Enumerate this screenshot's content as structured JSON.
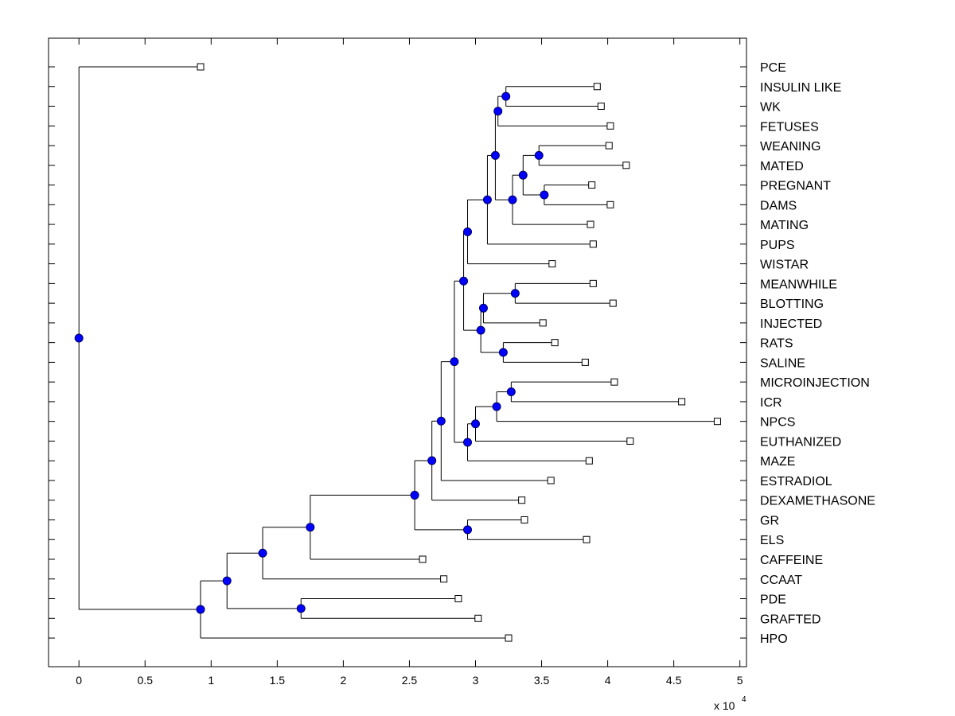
{
  "chart_data": {
    "type": "dendrogram",
    "title": "",
    "xlabel": "",
    "ylabel": "",
    "x_multiplier_label": "x 10",
    "x_multiplier_exponent": "4",
    "xlim": [
      -0.23,
      5.05
    ],
    "xticks": [
      0,
      0.5,
      1,
      1.5,
      2,
      2.5,
      3,
      3.5,
      4,
      4.5,
      5
    ],
    "xtick_labels": [
      "0",
      "0.5",
      "1",
      "1.5",
      "2",
      "2.5",
      "3",
      "3.5",
      "4",
      "4.5",
      "5"
    ],
    "leaves": [
      {
        "label": "PCE",
        "x": 0.92
      },
      {
        "label": "INSULIN LIKE",
        "x": 3.92
      },
      {
        "label": "WK",
        "x": 3.95
      },
      {
        "label": "FETUSES",
        "x": 4.02
      },
      {
        "label": "WEANING",
        "x": 4.01
      },
      {
        "label": "MATED",
        "x": 4.14
      },
      {
        "label": "PREGNANT",
        "x": 3.88
      },
      {
        "label": "DAMS",
        "x": 4.02
      },
      {
        "label": "MATING",
        "x": 3.87
      },
      {
        "label": "PUPS",
        "x": 3.89
      },
      {
        "label": "WISTAR",
        "x": 3.58
      },
      {
        "label": "MEANWHILE",
        "x": 3.89
      },
      {
        "label": "BLOTTING",
        "x": 4.04
      },
      {
        "label": "INJECTED",
        "x": 3.51
      },
      {
        "label": "RATS",
        "x": 3.6
      },
      {
        "label": "SALINE",
        "x": 3.83
      },
      {
        "label": "MICROINJECTION",
        "x": 4.05
      },
      {
        "label": "ICR",
        "x": 4.56
      },
      {
        "label": "NPCS",
        "x": 4.83
      },
      {
        "label": "EUTHANIZED",
        "x": 4.17
      },
      {
        "label": "MAZE",
        "x": 3.86
      },
      {
        "label": "ESTRADIOL",
        "x": 3.57
      },
      {
        "label": "DEXAMETHASONE",
        "x": 3.35
      },
      {
        "label": "GR",
        "x": 3.37
      },
      {
        "label": "ELS",
        "x": 3.84
      },
      {
        "label": "CAFFEINE",
        "x": 2.6
      },
      {
        "label": "CCAAT",
        "x": 2.76
      },
      {
        "label": "PDE",
        "x": 2.87
      },
      {
        "label": "GRAFTED",
        "x": 3.02
      },
      {
        "label": "HPO",
        "x": 3.25
      }
    ],
    "nodes": [
      {
        "id": "n_iw",
        "x": 3.23,
        "children": [
          "leaf:1",
          "leaf:2"
        ]
      },
      {
        "id": "n_iwf",
        "x": 3.17,
        "children": [
          "n_iw",
          "leaf:3"
        ]
      },
      {
        "id": "n_wm",
        "x": 3.48,
        "children": [
          "leaf:4",
          "leaf:5"
        ]
      },
      {
        "id": "n_pd",
        "x": 3.52,
        "children": [
          "leaf:6",
          "leaf:7"
        ]
      },
      {
        "id": "n_wmpd",
        "x": 3.36,
        "children": [
          "n_wm",
          "n_pd"
        ]
      },
      {
        "id": "n_wmpdm",
        "x": 3.28,
        "children": [
          "n_wmpd",
          "leaf:8"
        ]
      },
      {
        "id": "n_a",
        "x": 3.15,
        "children": [
          "n_iwf",
          "n_wmpdm"
        ]
      },
      {
        "id": "n_b",
        "x": 3.09,
        "children": [
          "n_a",
          "leaf:9"
        ]
      },
      {
        "id": "n_c",
        "x": 2.94,
        "children": [
          "n_b",
          "leaf:10"
        ]
      },
      {
        "id": "n_mb",
        "x": 3.3,
        "children": [
          "leaf:11",
          "leaf:12"
        ]
      },
      {
        "id": "n_mbi",
        "x": 3.06,
        "children": [
          "n_mb",
          "leaf:13"
        ]
      },
      {
        "id": "n_rs",
        "x": 3.21,
        "children": [
          "leaf:14",
          "leaf:15"
        ]
      },
      {
        "id": "n_mbirs",
        "x": 3.04,
        "children": [
          "n_mbi",
          "n_rs"
        ]
      },
      {
        "id": "n_d",
        "x": 2.91,
        "children": [
          "n_c",
          "n_mbirs"
        ]
      },
      {
        "id": "n_mi",
        "x": 3.27,
        "children": [
          "leaf:16",
          "leaf:17"
        ]
      },
      {
        "id": "n_min",
        "x": 3.16,
        "children": [
          "n_mi",
          "leaf:18"
        ]
      },
      {
        "id": "n_mine",
        "x": 3.0,
        "children": [
          "n_min",
          "leaf:19"
        ]
      },
      {
        "id": "n_minem",
        "x": 2.94,
        "children": [
          "n_mine",
          "leaf:20"
        ]
      },
      {
        "id": "n_e",
        "x": 2.84,
        "children": [
          "n_d",
          "n_minem"
        ]
      },
      {
        "id": "n_f",
        "x": 2.74,
        "children": [
          "n_e",
          "leaf:21"
        ]
      },
      {
        "id": "n_g",
        "x": 2.67,
        "children": [
          "n_f",
          "leaf:22"
        ]
      },
      {
        "id": "n_ge",
        "x": 2.94,
        "children": [
          "leaf:23",
          "leaf:24"
        ]
      },
      {
        "id": "n_h",
        "x": 2.54,
        "children": [
          "n_g",
          "n_ge"
        ]
      },
      {
        "id": "n_i",
        "x": 1.75,
        "children": [
          "n_h",
          "leaf:25"
        ]
      },
      {
        "id": "n_j",
        "x": 1.39,
        "children": [
          "n_i",
          "leaf:26"
        ]
      },
      {
        "id": "n_pg",
        "x": 1.68,
        "children": [
          "leaf:27",
          "leaf:28"
        ]
      },
      {
        "id": "n_k",
        "x": 1.12,
        "children": [
          "n_j",
          "n_pg"
        ]
      },
      {
        "id": "n_l",
        "x": 0.92,
        "children": [
          "n_k",
          "leaf:29"
        ]
      },
      {
        "id": "n_root",
        "x": 0.0,
        "children": [
          "leaf:0",
          "n_l"
        ]
      }
    ],
    "colors": {
      "node_fill": "#0000ff",
      "node_stroke": "#000060",
      "leaf_fill": "#ffffff",
      "line": "#000000"
    }
  }
}
